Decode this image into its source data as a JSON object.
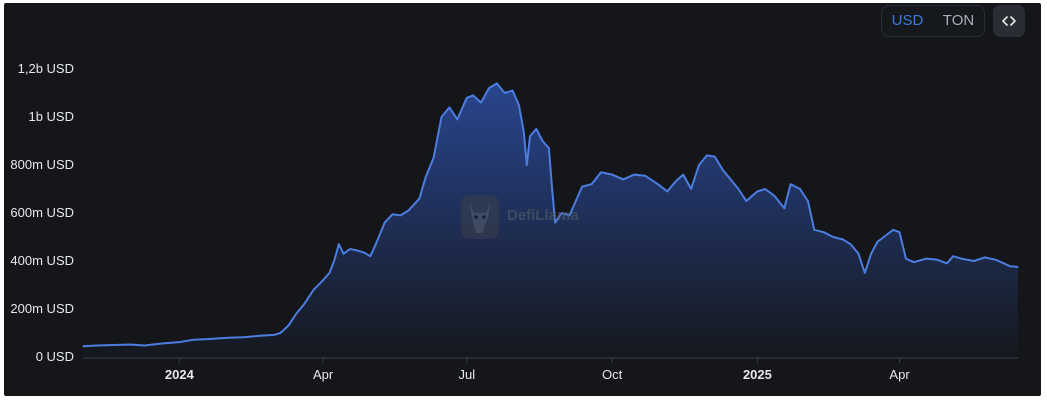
{
  "toggle": {
    "options": [
      {
        "label": "USD",
        "active": true
      },
      {
        "label": "TON",
        "active": false
      }
    ]
  },
  "embed_button": {
    "icon": "code-brackets-icon",
    "glyph": "‹›"
  },
  "watermark": {
    "text": "DefiLlama",
    "icon": "llama-logo-icon"
  },
  "colors": {
    "background": "#141619",
    "line": "#4c7de0",
    "area_top": "#2b4a9a",
    "area_bottom": "#15181f",
    "active_toggle": "#3e7ad9"
  },
  "chart_data": {
    "type": "area",
    "y_unit": "USD",
    "ylim": [
      0,
      1400000000
    ],
    "grid": false,
    "legend": "none",
    "y_ticks": [
      {
        "value": 0,
        "label": "0 USD"
      },
      {
        "value": 200000000,
        "label": "200m USD"
      },
      {
        "value": 400000000,
        "label": "400m USD"
      },
      {
        "value": 600000000,
        "label": "600m USD"
      },
      {
        "value": 800000000,
        "label": "800m USD"
      },
      {
        "value": 1000000000,
        "label": "1b USD"
      },
      {
        "value": 1200000000,
        "label": "1,2b USD"
      }
    ],
    "x_ticks": [
      {
        "date": "2024-01-01",
        "label": "2024",
        "bold": true
      },
      {
        "date": "2024-04-01",
        "label": "Apr",
        "bold": false
      },
      {
        "date": "2024-07-01",
        "label": "Jul",
        "bold": false
      },
      {
        "date": "2024-10-01",
        "label": "Oct",
        "bold": false
      },
      {
        "date": "2025-01-01",
        "label": "2025",
        "bold": true
      },
      {
        "date": "2025-04-01",
        "label": "Apr",
        "bold": false
      }
    ],
    "xlim": [
      "2023-11-01",
      "2025-06-15"
    ],
    "series": [
      {
        "points": [
          [
            "2023-11-01",
            45000000
          ],
          [
            "2023-11-10",
            48000000
          ],
          [
            "2023-11-20",
            50000000
          ],
          [
            "2023-12-01",
            52000000
          ],
          [
            "2023-12-10",
            48000000
          ],
          [
            "2023-12-20",
            56000000
          ],
          [
            "2024-01-01",
            62000000
          ],
          [
            "2024-01-10",
            72000000
          ],
          [
            "2024-01-20",
            75000000
          ],
          [
            "2024-02-01",
            80000000
          ],
          [
            "2024-02-10",
            82000000
          ],
          [
            "2024-02-20",
            88000000
          ],
          [
            "2024-03-01",
            92000000
          ],
          [
            "2024-03-05",
            100000000
          ],
          [
            "2024-03-10",
            130000000
          ],
          [
            "2024-03-15",
            180000000
          ],
          [
            "2024-03-20",
            220000000
          ],
          [
            "2024-03-26",
            280000000
          ],
          [
            "2024-04-01",
            320000000
          ],
          [
            "2024-04-05",
            350000000
          ],
          [
            "2024-04-08",
            400000000
          ],
          [
            "2024-04-11",
            470000000
          ],
          [
            "2024-04-14",
            430000000
          ],
          [
            "2024-04-18",
            450000000
          ],
          [
            "2024-04-22",
            445000000
          ],
          [
            "2024-04-27",
            435000000
          ],
          [
            "2024-05-01",
            420000000
          ],
          [
            "2024-05-05",
            480000000
          ],
          [
            "2024-05-10",
            560000000
          ],
          [
            "2024-05-15",
            595000000
          ],
          [
            "2024-05-20",
            590000000
          ],
          [
            "2024-05-25",
            610000000
          ],
          [
            "2024-06-01",
            660000000
          ],
          [
            "2024-06-05",
            750000000
          ],
          [
            "2024-06-10",
            830000000
          ],
          [
            "2024-06-15",
            1000000000
          ],
          [
            "2024-06-20",
            1040000000
          ],
          [
            "2024-06-25",
            990000000
          ],
          [
            "2024-07-01",
            1080000000
          ],
          [
            "2024-07-05",
            1090000000
          ],
          [
            "2024-07-10",
            1060000000
          ],
          [
            "2024-07-15",
            1120000000
          ],
          [
            "2024-07-20",
            1140000000
          ],
          [
            "2024-07-25",
            1100000000
          ],
          [
            "2024-07-30",
            1110000000
          ],
          [
            "2024-08-03",
            1050000000
          ],
          [
            "2024-08-06",
            940000000
          ],
          [
            "2024-08-08",
            800000000
          ],
          [
            "2024-08-10",
            920000000
          ],
          [
            "2024-08-14",
            950000000
          ],
          [
            "2024-08-18",
            900000000
          ],
          [
            "2024-08-22",
            870000000
          ],
          [
            "2024-08-24",
            700000000
          ],
          [
            "2024-08-26",
            560000000
          ],
          [
            "2024-08-30",
            600000000
          ],
          [
            "2024-09-04",
            590000000
          ],
          [
            "2024-09-08",
            650000000
          ],
          [
            "2024-09-12",
            710000000
          ],
          [
            "2024-09-18",
            720000000
          ],
          [
            "2024-09-24",
            770000000
          ],
          [
            "2024-10-01",
            760000000
          ],
          [
            "2024-10-08",
            740000000
          ],
          [
            "2024-10-15",
            760000000
          ],
          [
            "2024-10-22",
            755000000
          ],
          [
            "2024-10-30",
            720000000
          ],
          [
            "2024-11-05",
            690000000
          ],
          [
            "2024-11-10",
            730000000
          ],
          [
            "2024-11-15",
            760000000
          ],
          [
            "2024-11-20",
            700000000
          ],
          [
            "2024-11-25",
            800000000
          ],
          [
            "2024-11-30",
            840000000
          ],
          [
            "2024-12-05",
            835000000
          ],
          [
            "2024-12-10",
            780000000
          ],
          [
            "2024-12-15",
            740000000
          ],
          [
            "2024-12-20",
            700000000
          ],
          [
            "2024-12-25",
            650000000
          ],
          [
            "2025-01-01",
            690000000
          ],
          [
            "2025-01-06",
            700000000
          ],
          [
            "2025-01-12",
            670000000
          ],
          [
            "2025-01-18",
            620000000
          ],
          [
            "2025-01-22",
            720000000
          ],
          [
            "2025-01-28",
            700000000
          ],
          [
            "2025-02-02",
            650000000
          ],
          [
            "2025-02-06",
            530000000
          ],
          [
            "2025-02-12",
            520000000
          ],
          [
            "2025-02-18",
            500000000
          ],
          [
            "2025-02-24",
            490000000
          ],
          [
            "2025-03-01",
            470000000
          ],
          [
            "2025-03-06",
            430000000
          ],
          [
            "2025-03-10",
            350000000
          ],
          [
            "2025-03-14",
            430000000
          ],
          [
            "2025-03-18",
            480000000
          ],
          [
            "2025-03-22",
            500000000
          ],
          [
            "2025-03-28",
            530000000
          ],
          [
            "2025-04-01",
            520000000
          ],
          [
            "2025-04-05",
            410000000
          ],
          [
            "2025-04-10",
            395000000
          ],
          [
            "2025-04-18",
            410000000
          ],
          [
            "2025-04-25",
            405000000
          ],
          [
            "2025-05-01",
            390000000
          ],
          [
            "2025-05-05",
            420000000
          ],
          [
            "2025-05-10",
            410000000
          ],
          [
            "2025-05-18",
            400000000
          ],
          [
            "2025-05-25",
            415000000
          ],
          [
            "2025-06-01",
            405000000
          ],
          [
            "2025-06-06",
            390000000
          ],
          [
            "2025-06-10",
            378000000
          ],
          [
            "2025-06-15",
            375000000
          ]
        ]
      }
    ]
  }
}
